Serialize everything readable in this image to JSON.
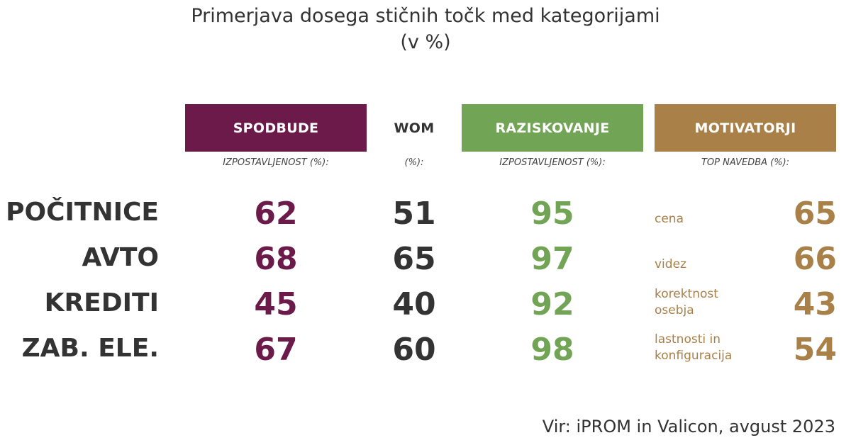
{
  "title_line1": "Primerjava dosega stičnih točk med kategorijami",
  "title_line2": "(v %)",
  "colors": {
    "spodbude": "#6b1a4a",
    "wom": "#333333",
    "raziskovanje": "#72a455",
    "motivatorji": "#a88048"
  },
  "chart_data": {
    "type": "table",
    "title": "Primerjava dosega stičnih točk med kategorijami (v %)",
    "columns": [
      {
        "key": "spodbude",
        "header": "SPODBUDE",
        "subheader": "IZPOSTAVLJENOST (%):"
      },
      {
        "key": "wom",
        "header": "WOM",
        "subheader": "(%):"
      },
      {
        "key": "raziskovanje",
        "header": "RAZISKOVANJE",
        "subheader": "IZPOSTAVLJENOST (%):"
      },
      {
        "key": "motivatorji",
        "header": "MOTIVATORJI",
        "subheader": "TOP NAVEDBA (%):"
      }
    ],
    "rows": [
      {
        "category": "POČITNICE",
        "spodbude": 62,
        "wom": 51,
        "raziskovanje": 95,
        "motivator_label": [
          "cena"
        ],
        "motivatorji": 65
      },
      {
        "category": "AVTO",
        "spodbude": 68,
        "wom": 65,
        "raziskovanje": 97,
        "motivator_label": [
          "videz"
        ],
        "motivatorji": 66
      },
      {
        "category": "KREDITI",
        "spodbude": 45,
        "wom": 40,
        "raziskovanje": 92,
        "motivator_label": [
          "korektnost",
          "osebja"
        ],
        "motivatorji": 43
      },
      {
        "category": "ZAB. ELE.",
        "spodbude": 67,
        "wom": 60,
        "raziskovanje": 98,
        "motivator_label": [
          "lastnosti in",
          "konfiguracija"
        ],
        "motivatorji": 54
      }
    ]
  },
  "source": "Vir: iPROM in Valicon, avgust 2023"
}
